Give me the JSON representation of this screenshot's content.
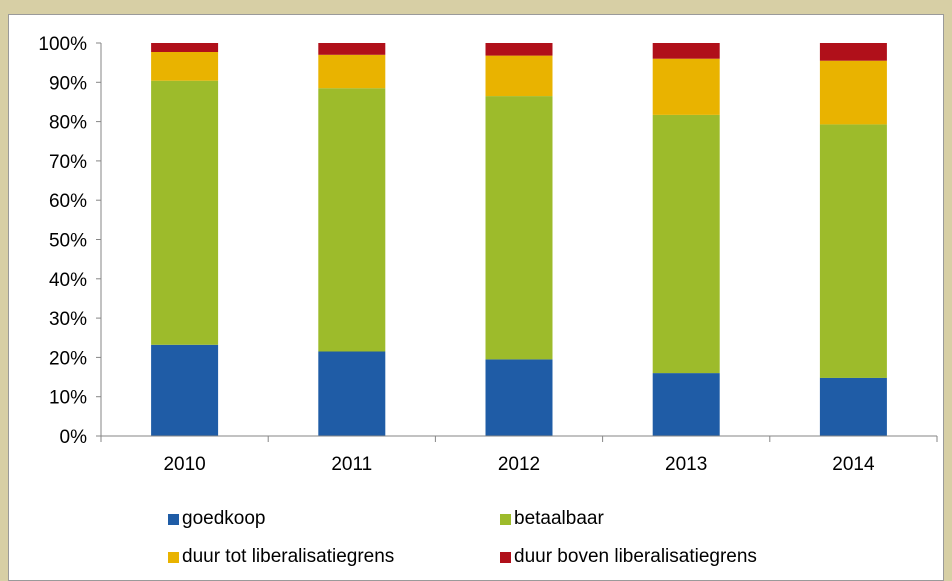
{
  "chart_data": {
    "type": "bar",
    "stacked": true,
    "categories": [
      "2010",
      "2011",
      "2012",
      "2013",
      "2014"
    ],
    "series": [
      {
        "name": "goedkoop",
        "color": "#1f5ca6",
        "values": [
          23.2,
          21.5,
          19.5,
          16.0,
          14.8
        ]
      },
      {
        "name": "betaalbaar",
        "color": "#9dbb2b",
        "values": [
          67.2,
          67.0,
          67.0,
          65.7,
          64.5
        ]
      },
      {
        "name": "duur tot liberalisatiegrens",
        "color": "#e9b300",
        "values": [
          7.3,
          8.5,
          10.3,
          14.3,
          16.2
        ]
      },
      {
        "name": "duur boven liberalisatiegrens",
        "color": "#b0101a",
        "values": [
          2.3,
          3.0,
          3.2,
          4.0,
          4.5
        ]
      }
    ],
    "yticks": [
      "0%",
      "10%",
      "20%",
      "30%",
      "40%",
      "50%",
      "60%",
      "70%",
      "80%",
      "90%",
      "100%"
    ],
    "ylim": [
      0,
      100
    ],
    "grid": false,
    "legend_position": "bottom"
  }
}
